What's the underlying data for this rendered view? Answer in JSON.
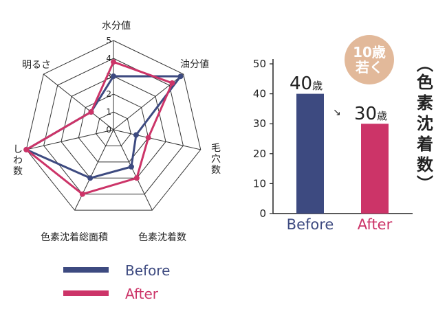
{
  "chart_data": [
    {
      "type": "radar",
      "axes": [
        "水分値",
        "油分値",
        "毛穴数",
        "色素沈着数",
        "色素沈着総面積",
        "しわ数",
        "明るさ"
      ],
      "axis_label_lines": [
        [
          "水分値"
        ],
        [
          "油分値"
        ],
        [
          "毛",
          "穴",
          "数"
        ],
        [
          "色素沈着数"
        ],
        [
          "色素沈着総面積"
        ],
        [
          "し",
          "わ",
          "数"
        ],
        [
          "明るさ"
        ]
      ],
      "rlim": [
        0,
        5
      ],
      "ticks": [
        "0",
        "1",
        "2",
        "3",
        "4",
        "5"
      ],
      "series": [
        {
          "name": "Before",
          "color": "#3d4a80",
          "values": [
            3.0,
            4.8,
            1.3,
            2.3,
            3.0,
            5.0,
            1.6
          ]
        },
        {
          "name": "After",
          "color": "#cc3468",
          "values": [
            3.8,
            4.2,
            2.0,
            3.0,
            4.0,
            5.0,
            1.6
          ]
        }
      ],
      "legend": {
        "placement": "bottom-left"
      }
    },
    {
      "type": "bar",
      "categories": [
        "Before",
        "After"
      ],
      "values": [
        40,
        30
      ],
      "colors": [
        "#3d4a80",
        "#cc3468"
      ],
      "ylim": [
        0,
        50
      ],
      "yticks": [
        "0",
        "10",
        "20",
        "30",
        "40",
        "50"
      ],
      "value_labels": [
        {
          "num": "40",
          "unit": "歳"
        },
        {
          "num": "30",
          "unit": "歳"
        }
      ],
      "arrow": "↘",
      "badge": {
        "lines": [
          "10歳",
          "若く"
        ],
        "color": "#e2b99a"
      },
      "side_title": {
        "open": "︵",
        "chars": [
          "色",
          "素",
          "沈",
          "着",
          "数"
        ],
        "close": "︶"
      }
    }
  ]
}
